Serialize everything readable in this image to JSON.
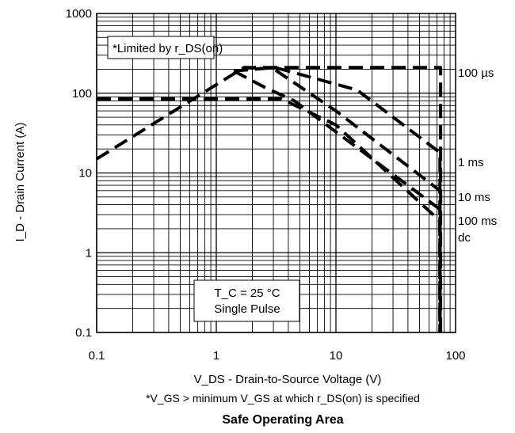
{
  "chart_data": {
    "type": "line",
    "title": "Safe Operating Area",
    "xlabel": "V_DS - Drain-to-Source Voltage (V)",
    "ylabel": "I_D - Drain Current (A)",
    "footnote": "*V_GS > minimum V_GS at which r_DS(on) is specified",
    "x_scale": "log",
    "y_scale": "log",
    "xlim": [
      0.1,
      100
    ],
    "ylim": [
      0.1,
      1000
    ],
    "x_ticks": [
      "0.1",
      "1",
      "10",
      "100"
    ],
    "y_ticks": [
      "0.1",
      "1",
      "10",
      "100",
      "1000"
    ],
    "grid": true,
    "annotations": {
      "limited": "*Limited by r_DS(on)",
      "tc": "T_C = 25 °C",
      "pulse": "Single Pulse"
    },
    "series": [
      {
        "name": "100 µs",
        "x": [
          0.1,
          1.7,
          7.5,
          75,
          75,
          80
        ],
        "y": [
          15,
          210,
          210,
          210,
          0.1,
          0.1
        ]
      },
      {
        "name": "1 ms",
        "x": [
          1.4,
          3.1,
          15,
          74,
          74
        ],
        "y": [
          190,
          210,
          110,
          18,
          0.1
        ]
      },
      {
        "name": "10 ms",
        "x": [
          1.4,
          2.9,
          10,
          74,
          74
        ],
        "y": [
          190,
          210,
          60,
          6,
          0.1
        ]
      },
      {
        "name": "100 ms",
        "x": [
          1.4,
          2.5,
          4.5,
          74,
          74
        ],
        "y": [
          190,
          120,
          80,
          3.5,
          0.1
        ]
      },
      {
        "name": "dc",
        "x": [
          0.1,
          3.5,
          10,
          74,
          74
        ],
        "y": [
          85,
          85,
          40,
          2.5,
          0.1
        ]
      }
    ]
  }
}
